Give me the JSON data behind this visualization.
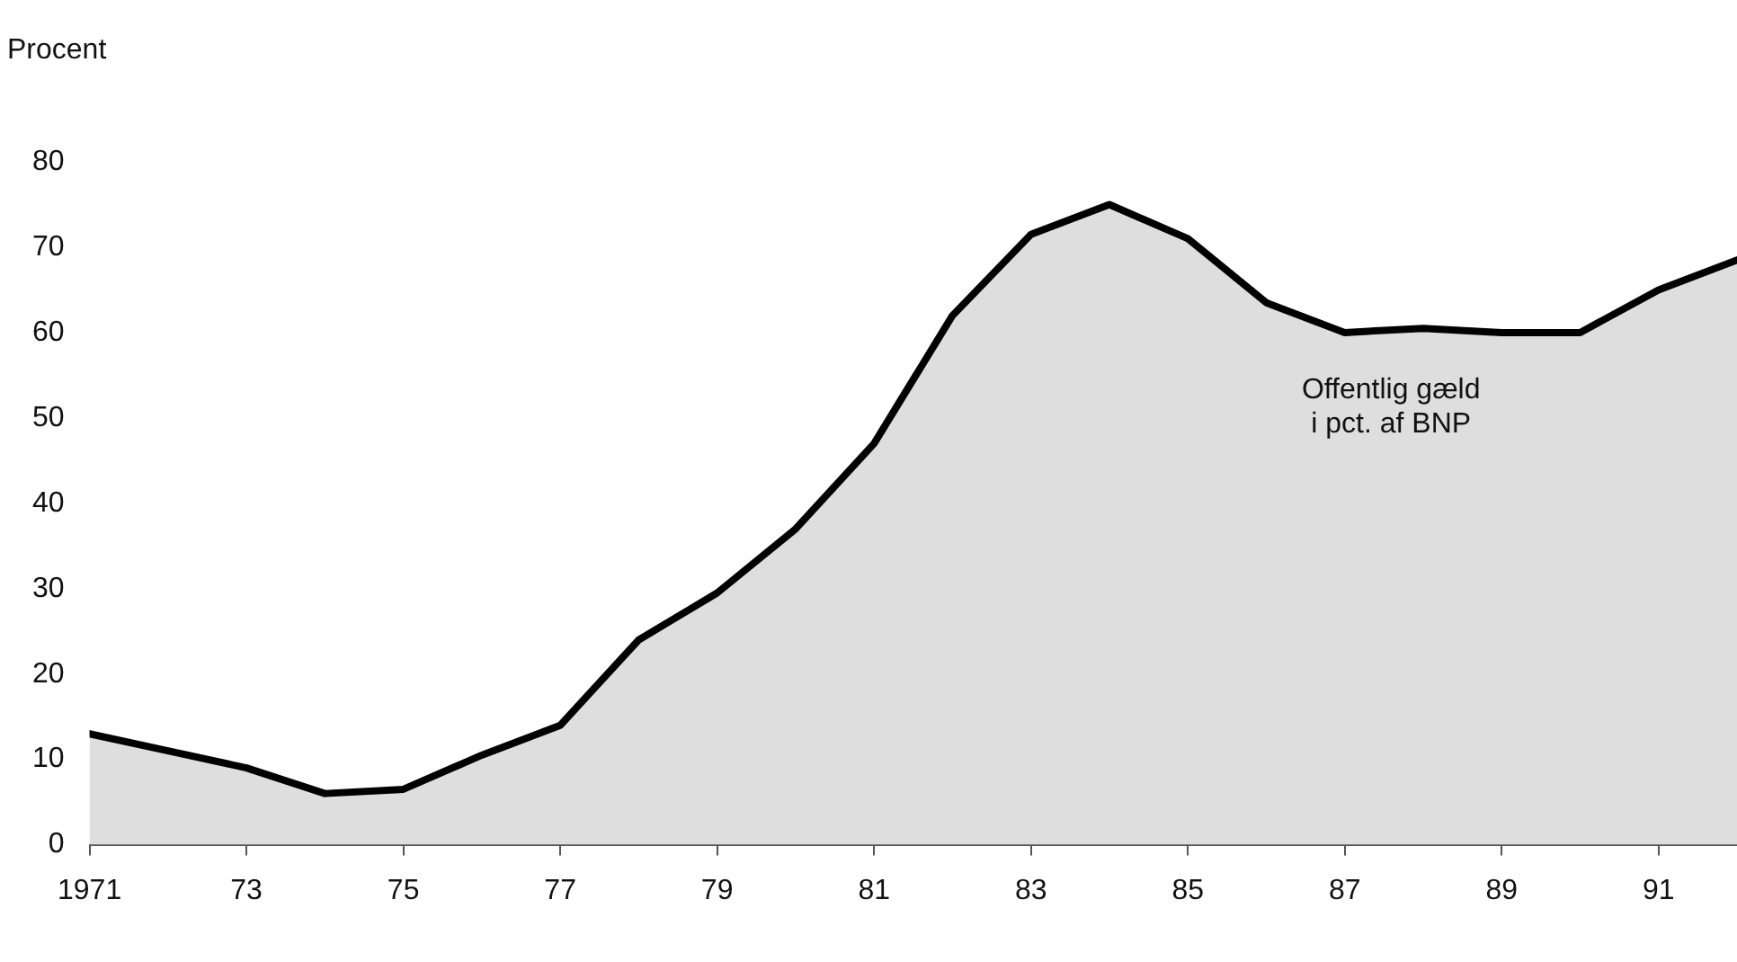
{
  "chart_data": {
    "type": "area",
    "ylabel": "Procent",
    "x": [
      1971,
      1972,
      1973,
      1974,
      1975,
      1976,
      1977,
      1978,
      1979,
      1980,
      1981,
      1982,
      1983,
      1984,
      1985,
      1986,
      1987,
      1988,
      1989,
      1990,
      1991,
      1992
    ],
    "series": [
      {
        "color": "#000000",
        "values": [
          13,
          11,
          9,
          6,
          6.5,
          10.5,
          14,
          24,
          29.5,
          37,
          47,
          62,
          71.5,
          75,
          71,
          63.5,
          60,
          60.5,
          60,
          60,
          65,
          68.5
        ]
      }
    ],
    "xlim": [
      1971,
      1992
    ],
    "xticks": [
      {
        "value": 1971,
        "label": "1971"
      },
      {
        "value": 1973,
        "label": "73"
      },
      {
        "value": 1975,
        "label": "75"
      },
      {
        "value": 1977,
        "label": "77"
      },
      {
        "value": 1979,
        "label": "79"
      },
      {
        "value": 1981,
        "label": "81"
      },
      {
        "value": 1983,
        "label": "83"
      },
      {
        "value": 1985,
        "label": "85"
      },
      {
        "value": 1987,
        "label": "87"
      },
      {
        "value": 1989,
        "label": "89"
      },
      {
        "value": 1991,
        "label": "91"
      }
    ],
    "ylim": [
      0,
      80
    ],
    "yticks": [
      0,
      10,
      20,
      30,
      40,
      50,
      60,
      70,
      80
    ],
    "annotations": [
      "Offentlig gæld\ni pct. af BNP"
    ],
    "grid": false,
    "legend": false,
    "marker": "none",
    "line_style": "solid"
  }
}
